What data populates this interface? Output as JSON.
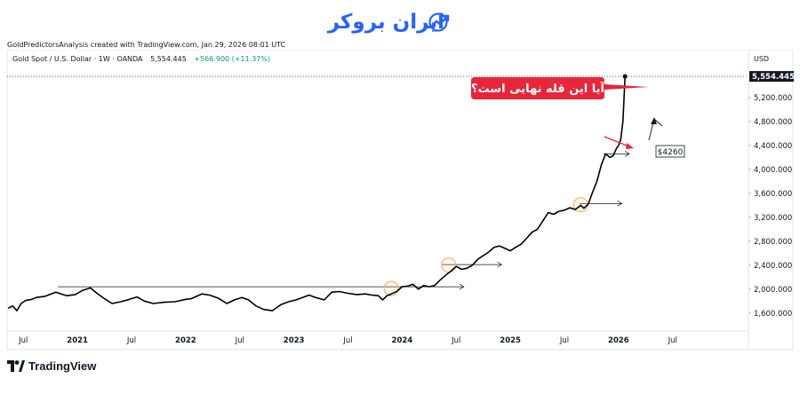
{
  "brand": {
    "name": "ایران بروکر",
    "icon": "trend-up-icon",
    "color": "#2962ff"
  },
  "attribution": "GoldPredictorsAnalysis created with TradingView.com, Jan 29, 2026 08:01 UTC",
  "footer": {
    "logo_text": "TradingView",
    "logo_icon": "tradingview-logo-icon"
  },
  "chart_data": {
    "type": "line",
    "title": "Gold Spot / U.S. Dollar · 1W · OANDA",
    "last_value_text": "5,554.445",
    "change_text": "+566.900 (+11.37%)",
    "currency": "USD",
    "y_ticks": [
      1600,
      2000,
      2400,
      2800,
      3200,
      3600,
      4000,
      4400,
      4800,
      5200
    ],
    "y_tick_labels": [
      "1,600.000",
      "2,000.000",
      "2,400.000",
      "2,800.000",
      "3,200.000",
      "3,600.000",
      "4,000.000",
      "4,400.000",
      "4,800.000",
      "5,200.000"
    ],
    "ylim": [
      1300,
      6000
    ],
    "xlim": [
      2020.35,
      2027.2
    ],
    "x_ticks": [
      {
        "x": 2020.5,
        "label": "Jul"
      },
      {
        "x": 2021.0,
        "label": "2021"
      },
      {
        "x": 2021.5,
        "label": "Jul"
      },
      {
        "x": 2022.0,
        "label": "2022"
      },
      {
        "x": 2022.5,
        "label": "Jul"
      },
      {
        "x": 2023.0,
        "label": "2023"
      },
      {
        "x": 2023.5,
        "label": "Jul"
      },
      {
        "x": 2024.0,
        "label": "2024"
      },
      {
        "x": 2024.5,
        "label": "Jul"
      },
      {
        "x": 2025.0,
        "label": "2025"
      },
      {
        "x": 2025.5,
        "label": "Jul"
      },
      {
        "x": 2026.0,
        "label": "2026"
      },
      {
        "x": 2026.5,
        "label": "Jul"
      }
    ],
    "grid": false,
    "series": [
      {
        "color": "#000000",
        "x": [
          2020.36,
          2020.4,
          2020.44,
          2020.48,
          2020.52,
          2020.58,
          2020.62,
          2020.7,
          2020.8,
          2020.9,
          2020.98,
          2021.05,
          2021.12,
          2021.18,
          2021.25,
          2021.32,
          2021.4,
          2021.48,
          2021.55,
          2021.62,
          2021.7,
          2021.8,
          2021.9,
          2022.0,
          2022.05,
          2022.1,
          2022.15,
          2022.22,
          2022.3,
          2022.38,
          2022.45,
          2022.52,
          2022.58,
          2022.65,
          2022.72,
          2022.8,
          2022.88,
          2022.95,
          2023.02,
          2023.08,
          2023.14,
          2023.2,
          2023.28,
          2023.35,
          2023.42,
          2023.5,
          2023.58,
          2023.66,
          2023.72,
          2023.78,
          2023.82,
          2023.86,
          2023.9,
          2023.95,
          2024.0,
          2024.05,
          2024.1,
          2024.15,
          2024.2,
          2024.25,
          2024.3,
          2024.35,
          2024.4,
          2024.45,
          2024.5,
          2024.55,
          2024.6,
          2024.65,
          2024.7,
          2024.75,
          2024.8,
          2024.85,
          2024.9,
          2024.95,
          2025.0,
          2025.05,
          2025.1,
          2025.15,
          2025.2,
          2025.25,
          2025.3,
          2025.35,
          2025.4,
          2025.45,
          2025.5,
          2025.55,
          2025.6,
          2025.65,
          2025.68,
          2025.72,
          2025.76,
          2025.8,
          2025.84,
          2025.88,
          2025.92,
          2025.95,
          2025.98,
          2026.0,
          2026.02,
          2026.04,
          2026.06
        ],
        "y": [
          1680,
          1720,
          1640,
          1760,
          1810,
          1830,
          1860,
          1880,
          1950,
          1890,
          1910,
          1980,
          2020,
          1930,
          1840,
          1760,
          1790,
          1830,
          1870,
          1800,
          1760,
          1780,
          1790,
          1830,
          1840,
          1880,
          1920,
          1900,
          1850,
          1760,
          1820,
          1860,
          1820,
          1720,
          1660,
          1640,
          1740,
          1790,
          1820,
          1860,
          1900,
          1860,
          1820,
          1950,
          1960,
          1930,
          1910,
          1920,
          1900,
          1890,
          1820,
          1890,
          1920,
          1960,
          2040,
          2050,
          2080,
          2000,
          2060,
          2040,
          2060,
          2150,
          2230,
          2300,
          2380,
          2330,
          2350,
          2400,
          2500,
          2560,
          2620,
          2700,
          2720,
          2680,
          2640,
          2700,
          2750,
          2850,
          2950,
          3000,
          3140,
          3280,
          3250,
          3300,
          3320,
          3360,
          3330,
          3400,
          3350,
          3420,
          3620,
          3800,
          4070,
          4260,
          4200,
          4230,
          4350,
          4400,
          4500,
          4800,
          5554
        ]
      }
    ],
    "ref_lines": [
      {
        "x1": 2020.82,
        "x2": 2024.57,
        "y": 2040,
        "arrow": true
      },
      {
        "x1": 2024.37,
        "x2": 2024.92,
        "y": 2410,
        "arrow": true
      },
      {
        "x1": 2025.64,
        "x2": 2026.03,
        "y": 3430,
        "arrow": true
      },
      {
        "x1": 2025.86,
        "x2": 2026.1,
        "y": 4260,
        "arrow": true
      }
    ],
    "circles": [
      {
        "x": 2023.9,
        "y": 2010
      },
      {
        "x": 2024.43,
        "y": 2400
      },
      {
        "x": 2025.65,
        "y": 3410
      }
    ],
    "annotations": [
      {
        "text": "آیا این قله نهایی است؟",
        "bg": "#e8253a",
        "color": "#ffffff"
      },
      {
        "text": "$4260"
      }
    ]
  }
}
